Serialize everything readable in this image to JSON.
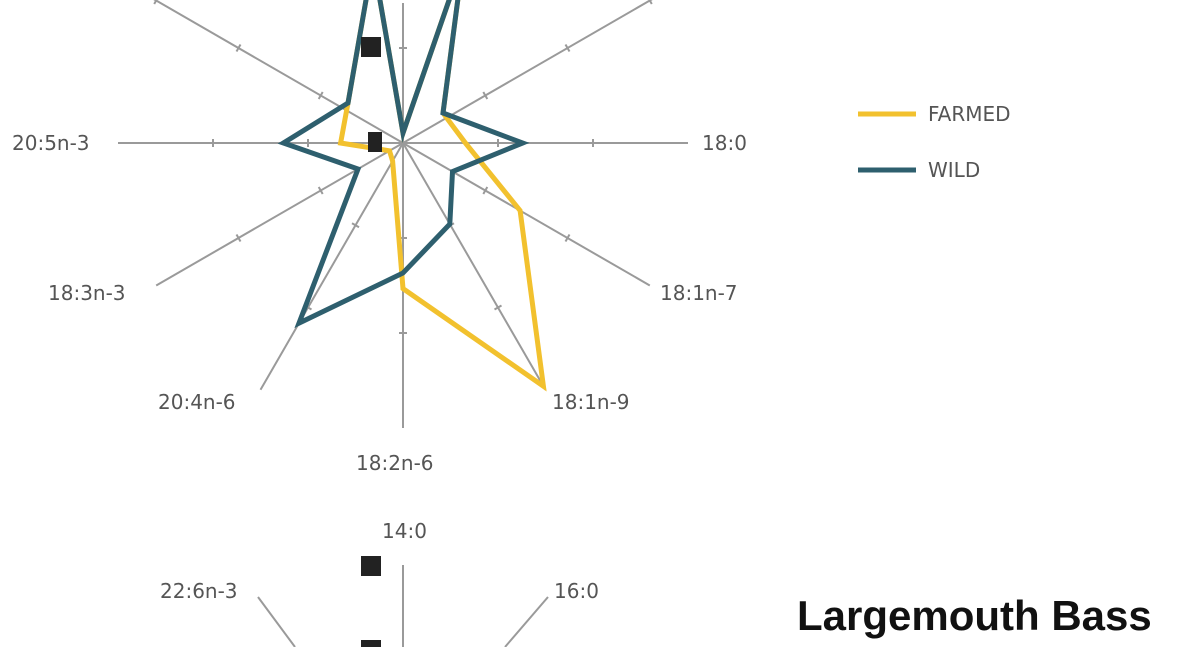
{
  "chart_data": [
    {
      "type": "radar",
      "axes": [
        "18:0",
        "18:1n-7",
        "18:1n-9",
        "18:2n-6",
        "20:4n-6",
        "18:3n-3",
        "20:5n-3"
      ],
      "series": [
        {
          "name": "FARMED",
          "color": "#F2C12E",
          "values": [
            1.2,
            2.6,
            5.4,
            2.8,
            0.4,
            0.3,
            1.2
          ]
        },
        {
          "name": "WILD",
          "color": "#2E5F6E",
          "values": [
            2.3,
            1.1,
            1.8,
            2.5,
            4.0,
            1.0,
            2.3
          ]
        }
      ],
      "legend": "right"
    },
    {
      "type": "radar",
      "axes": [
        "14:0",
        "16:0",
        "22:6n-3"
      ]
    }
  ],
  "title": "Largemouth Bass"
}
